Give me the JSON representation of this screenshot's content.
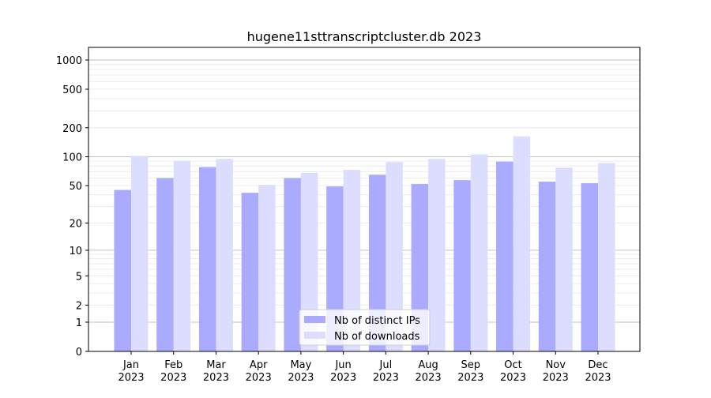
{
  "chart_data": {
    "type": "bar",
    "title": "hugene11sttranscriptcluster.db 2023",
    "xlabel": "",
    "ylabel": "",
    "yscale": "log(1+y)",
    "ylim": [
      0,
      1350
    ],
    "yticks": [
      0,
      1,
      2,
      5,
      10,
      20,
      50,
      100,
      200,
      500,
      1000
    ],
    "grid": true,
    "legend_position": "lower center",
    "categories": [
      "Jan\n2023",
      "Feb\n2023",
      "Mar\n2023",
      "Apr\n2023",
      "May\n2023",
      "Jun\n2023",
      "Jul\n2023",
      "Aug\n2023",
      "Sep\n2023",
      "Oct\n2023",
      "Nov\n2023",
      "Dec\n2023"
    ],
    "series": [
      {
        "name": "Nb of distinct IPs",
        "color": "#aaaaff",
        "values": [
          45,
          60,
          78,
          42,
          60,
          49,
          65,
          52,
          57,
          89,
          55,
          53
        ]
      },
      {
        "name": "Nb of downloads",
        "color": "#ddddff",
        "values": [
          102,
          91,
          95,
          51,
          68,
          73,
          88,
          95,
          106,
          163,
          77,
          86
        ]
      }
    ]
  }
}
